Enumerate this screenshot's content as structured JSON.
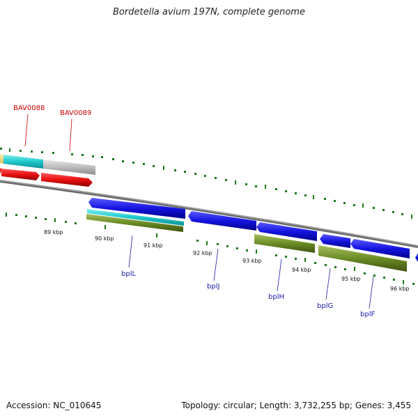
{
  "title": "Bordetella avium 197N, complete genome",
  "footer": {
    "accession": "Accession: NC_010645",
    "topology": "Topology: circular; Length: 3,732,255 bp; Genes: 3,455"
  },
  "colors": {
    "forward_cds": "#1a1ae0",
    "reverse_cds": "#e01010",
    "rna_cyan": "#1ec8cc",
    "olive": "#6b8c25",
    "gray": "#bdbdbd",
    "tick_green": "#1a7a1a",
    "blue_label": "#1a1aa8",
    "red_label": "#cc0000"
  },
  "scale_labels": [
    "89 kbp",
    "90 kbp",
    "91 kbp",
    "92 kbp",
    "93 kbp",
    "94 kbp",
    "95 kbp",
    "96 kbp"
  ],
  "gene_labels": {
    "top": [
      "BAV0088",
      "BAV0089"
    ],
    "bottom": [
      "bplL",
      "bplJ",
      "bplH",
      "bplG",
      "bplF"
    ]
  }
}
